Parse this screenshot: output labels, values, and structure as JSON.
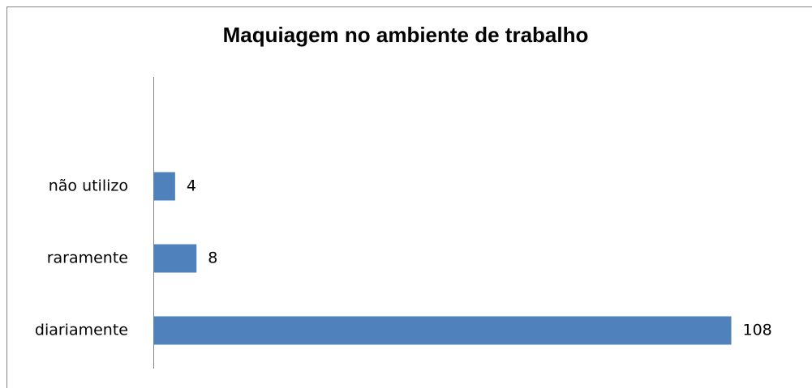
{
  "chart_data": {
    "type": "hbar",
    "title": "Maquiagem no ambiente de trabalho",
    "categories": [
      "diariamente",
      "raramente",
      "não utilizo"
    ],
    "values": [
      108,
      8,
      4
    ],
    "color": "#4f81bd"
  }
}
